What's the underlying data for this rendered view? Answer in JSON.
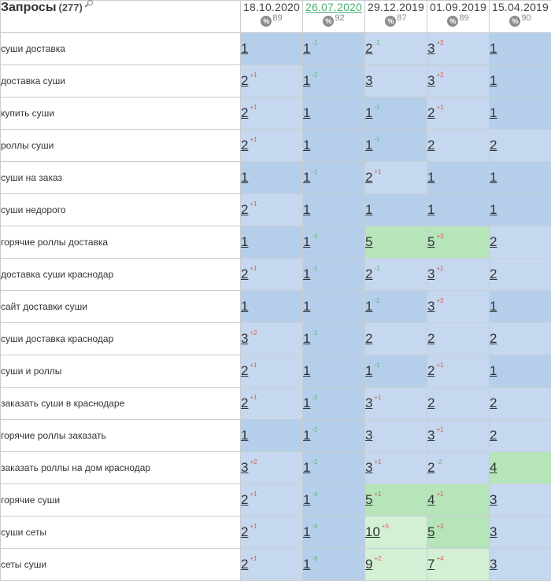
{
  "header": {
    "title": "Запросы",
    "count": "(277)",
    "dates": [
      {
        "label": "18.10.2020",
        "pct": "89",
        "active": false
      },
      {
        "label": "26.07.2020",
        "pct": "92",
        "active": true
      },
      {
        "label": "29.12.2019",
        "pct": "87",
        "active": false
      },
      {
        "label": "01.09.2019",
        "pct": "89",
        "active": false
      },
      {
        "label": "15.04.2019",
        "pct": "90",
        "active": false
      }
    ],
    "pct_icon_symbol": "%"
  },
  "colors": {
    "top1": "#b5cfea",
    "top3": "#c5d8ef",
    "top5": "#b1e3b6",
    "top10": "#d3f0d4",
    "change_down": "#e05a4f",
    "change_up": "#5fb870",
    "active_date": "#4caf72"
  },
  "rows": [
    {
      "query": "суши доставка",
      "cells": [
        {
          "pos": "1",
          "chg": "",
          "dir": ""
        },
        {
          "pos": "1",
          "chg": "-1",
          "dir": "up"
        },
        {
          "pos": "2",
          "chg": "-1",
          "dir": "up"
        },
        {
          "pos": "3",
          "chg": "+2",
          "dir": "down"
        },
        {
          "pos": "1",
          "chg": "",
          "dir": ""
        }
      ]
    },
    {
      "query": "доставка суши",
      "cells": [
        {
          "pos": "2",
          "chg": "+1",
          "dir": "down"
        },
        {
          "pos": "1",
          "chg": "-2",
          "dir": "up"
        },
        {
          "pos": "3",
          "chg": "",
          "dir": ""
        },
        {
          "pos": "3",
          "chg": "+2",
          "dir": "down"
        },
        {
          "pos": "1",
          "chg": "",
          "dir": ""
        }
      ]
    },
    {
      "query": "купить суши",
      "cells": [
        {
          "pos": "2",
          "chg": "+1",
          "dir": "down"
        },
        {
          "pos": "1",
          "chg": "",
          "dir": ""
        },
        {
          "pos": "1",
          "chg": "-1",
          "dir": "up"
        },
        {
          "pos": "2",
          "chg": "+1",
          "dir": "down"
        },
        {
          "pos": "1",
          "chg": "",
          "dir": ""
        }
      ]
    },
    {
      "query": "роллы суши",
      "cells": [
        {
          "pos": "2",
          "chg": "+1",
          "dir": "down"
        },
        {
          "pos": "1",
          "chg": "",
          "dir": ""
        },
        {
          "pos": "1",
          "chg": "-1",
          "dir": "up"
        },
        {
          "pos": "2",
          "chg": "",
          "dir": ""
        },
        {
          "pos": "2",
          "chg": "",
          "dir": ""
        }
      ]
    },
    {
      "query": "суши на заказ",
      "cells": [
        {
          "pos": "1",
          "chg": "",
          "dir": ""
        },
        {
          "pos": "1",
          "chg": "-1",
          "dir": "up"
        },
        {
          "pos": "2",
          "chg": "+1",
          "dir": "down"
        },
        {
          "pos": "1",
          "chg": "",
          "dir": ""
        },
        {
          "pos": "1",
          "chg": "",
          "dir": ""
        }
      ]
    },
    {
      "query": "суши недорого",
      "cells": [
        {
          "pos": "2",
          "chg": "+1",
          "dir": "down"
        },
        {
          "pos": "1",
          "chg": "",
          "dir": ""
        },
        {
          "pos": "1",
          "chg": "",
          "dir": ""
        },
        {
          "pos": "1",
          "chg": "",
          "dir": ""
        },
        {
          "pos": "1",
          "chg": "",
          "dir": ""
        }
      ]
    },
    {
      "query": "горячие роллы доставка",
      "cells": [
        {
          "pos": "1",
          "chg": "",
          "dir": ""
        },
        {
          "pos": "1",
          "chg": "-4",
          "dir": "up"
        },
        {
          "pos": "5",
          "chg": "",
          "dir": ""
        },
        {
          "pos": "5",
          "chg": "+3",
          "dir": "down"
        },
        {
          "pos": "2",
          "chg": "",
          "dir": ""
        }
      ]
    },
    {
      "query": "доставка суши краснодар",
      "cells": [
        {
          "pos": "2",
          "chg": "+1",
          "dir": "down"
        },
        {
          "pos": "1",
          "chg": "-1",
          "dir": "up"
        },
        {
          "pos": "2",
          "chg": "-1",
          "dir": "up"
        },
        {
          "pos": "3",
          "chg": "+1",
          "dir": "down"
        },
        {
          "pos": "2",
          "chg": "",
          "dir": ""
        }
      ]
    },
    {
      "query": "сайт доставки суши",
      "cells": [
        {
          "pos": "1",
          "chg": "",
          "dir": ""
        },
        {
          "pos": "1",
          "chg": "",
          "dir": ""
        },
        {
          "pos": "1",
          "chg": "-2",
          "dir": "up"
        },
        {
          "pos": "3",
          "chg": "+2",
          "dir": "down"
        },
        {
          "pos": "1",
          "chg": "",
          "dir": ""
        }
      ]
    },
    {
      "query": "суши доставка краснодар",
      "cells": [
        {
          "pos": "3",
          "chg": "+2",
          "dir": "down"
        },
        {
          "pos": "1",
          "chg": "-1",
          "dir": "up"
        },
        {
          "pos": "2",
          "chg": "",
          "dir": ""
        },
        {
          "pos": "2",
          "chg": "",
          "dir": ""
        },
        {
          "pos": "2",
          "chg": "",
          "dir": ""
        }
      ]
    },
    {
      "query": "суши и роллы",
      "cells": [
        {
          "pos": "2",
          "chg": "+1",
          "dir": "down"
        },
        {
          "pos": "1",
          "chg": "",
          "dir": ""
        },
        {
          "pos": "1",
          "chg": "-1",
          "dir": "up"
        },
        {
          "pos": "2",
          "chg": "+1",
          "dir": "down"
        },
        {
          "pos": "1",
          "chg": "",
          "dir": ""
        }
      ]
    },
    {
      "query": "заказать суши в краснодаре",
      "cells": [
        {
          "pos": "2",
          "chg": "+1",
          "dir": "down"
        },
        {
          "pos": "1",
          "chg": "-2",
          "dir": "up"
        },
        {
          "pos": "3",
          "chg": "+1",
          "dir": "down"
        },
        {
          "pos": "2",
          "chg": "",
          "dir": ""
        },
        {
          "pos": "2",
          "chg": "",
          "dir": ""
        }
      ]
    },
    {
      "query": "горячие роллы заказать",
      "cells": [
        {
          "pos": "1",
          "chg": "",
          "dir": ""
        },
        {
          "pos": "1",
          "chg": "-2",
          "dir": "up"
        },
        {
          "pos": "3",
          "chg": "",
          "dir": ""
        },
        {
          "pos": "3",
          "chg": "+1",
          "dir": "down"
        },
        {
          "pos": "2",
          "chg": "",
          "dir": ""
        }
      ]
    },
    {
      "query": "заказать роллы на дом краснодар",
      "cells": [
        {
          "pos": "3",
          "chg": "+2",
          "dir": "down"
        },
        {
          "pos": "1",
          "chg": "-2",
          "dir": "up"
        },
        {
          "pos": "3",
          "chg": "+1",
          "dir": "down"
        },
        {
          "pos": "2",
          "chg": "-2",
          "dir": "up"
        },
        {
          "pos": "4",
          "chg": "",
          "dir": ""
        }
      ]
    },
    {
      "query": "горячие суши",
      "cells": [
        {
          "pos": "2",
          "chg": "+1",
          "dir": "down"
        },
        {
          "pos": "1",
          "chg": "-4",
          "dir": "up"
        },
        {
          "pos": "5",
          "chg": "+1",
          "dir": "down"
        },
        {
          "pos": "4",
          "chg": "+1",
          "dir": "down"
        },
        {
          "pos": "3",
          "chg": "",
          "dir": ""
        }
      ]
    },
    {
      "query": "суши сеты",
      "cells": [
        {
          "pos": "2",
          "chg": "+1",
          "dir": "down"
        },
        {
          "pos": "1",
          "chg": "-9",
          "dir": "up"
        },
        {
          "pos": "10",
          "chg": "+5",
          "dir": "down"
        },
        {
          "pos": "5",
          "chg": "+2",
          "dir": "down"
        },
        {
          "pos": "3",
          "chg": "",
          "dir": ""
        }
      ]
    },
    {
      "query": "сеты суши",
      "cells": [
        {
          "pos": "2",
          "chg": "+1",
          "dir": "down"
        },
        {
          "pos": "1",
          "chg": "-8",
          "dir": "up"
        },
        {
          "pos": "9",
          "chg": "+2",
          "dir": "down"
        },
        {
          "pos": "7",
          "chg": "+4",
          "dir": "down"
        },
        {
          "pos": "3",
          "chg": "",
          "dir": ""
        }
      ]
    }
  ]
}
